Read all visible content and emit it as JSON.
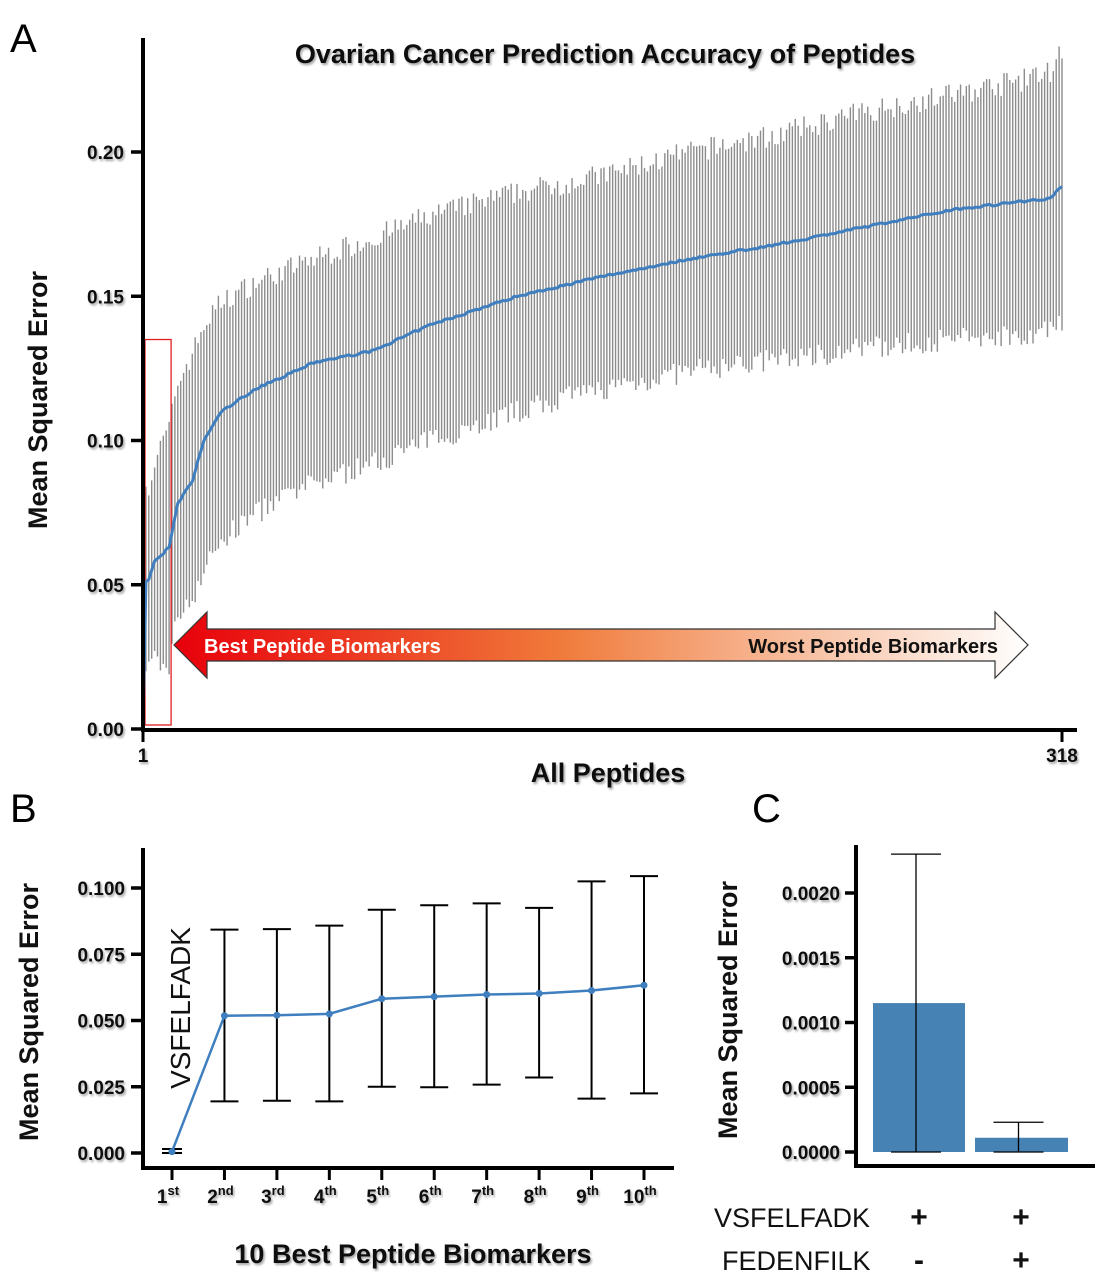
{
  "figure": {
    "panel_labels": [
      "A",
      "B",
      "C"
    ]
  },
  "chart_data": [
    {
      "panel": "A",
      "type": "line",
      "title": "Ovarian Cancer Prediction Accuracy of Peptides",
      "xlabel": "All Peptides",
      "ylabel": "Mean Squared Error",
      "xlim": [
        1,
        318
      ],
      "ylim": [
        0,
        0.24
      ],
      "x_tick_labels": [
        "1",
        "318"
      ],
      "x_ticks": [
        1,
        318
      ],
      "y_ticks": [
        0.0,
        0.05,
        0.1,
        0.15,
        0.2
      ],
      "y_tick_labels": [
        "0.00",
        "0.05",
        "0.10",
        "0.15",
        "0.20"
      ],
      "grid": false,
      "n_points": 318,
      "series": [
        {
          "name": "Mean Squared Error (mean with error bars)",
          "color": "#3f7fbf",
          "error_bar_color": "#8c8c8c",
          "anchor_points": [
            {
              "x": 1,
              "mean": 0.001,
              "low": 0.0,
              "high": 0.002
            },
            {
              "x": 2,
              "mean": 0.051,
              "low": 0.02,
              "high": 0.084
            },
            {
              "x": 3,
              "mean": 0.052,
              "low": 0.02,
              "high": 0.085
            },
            {
              "x": 5,
              "mean": 0.058,
              "low": 0.025,
              "high": 0.092
            },
            {
              "x": 8,
              "mean": 0.061,
              "low": 0.021,
              "high": 0.1
            },
            {
              "x": 10,
              "mean": 0.063,
              "low": 0.022,
              "high": 0.104
            },
            {
              "x": 13,
              "mean": 0.078,
              "low": 0.04,
              "high": 0.12
            },
            {
              "x": 18,
              "mean": 0.086,
              "low": 0.045,
              "high": 0.13
            },
            {
              "x": 22,
              "mean": 0.1,
              "low": 0.055,
              "high": 0.14
            },
            {
              "x": 28,
              "mean": 0.11,
              "low": 0.065,
              "high": 0.148
            },
            {
              "x": 40,
              "mean": 0.118,
              "low": 0.075,
              "high": 0.155
            },
            {
              "x": 60,
              "mean": 0.127,
              "low": 0.085,
              "high": 0.163
            },
            {
              "x": 80,
              "mean": 0.131,
              "low": 0.092,
              "high": 0.17
            },
            {
              "x": 100,
              "mean": 0.14,
              "low": 0.1,
              "high": 0.178
            },
            {
              "x": 130,
              "mean": 0.15,
              "low": 0.11,
              "high": 0.186
            },
            {
              "x": 160,
              "mean": 0.157,
              "low": 0.118,
              "high": 0.192
            },
            {
              "x": 190,
              "mean": 0.163,
              "low": 0.124,
              "high": 0.2
            },
            {
              "x": 220,
              "mean": 0.168,
              "low": 0.128,
              "high": 0.206
            },
            {
              "x": 250,
              "mean": 0.174,
              "low": 0.132,
              "high": 0.214
            },
            {
              "x": 280,
              "mean": 0.18,
              "low": 0.135,
              "high": 0.22
            },
            {
              "x": 305,
              "mean": 0.183,
              "low": 0.137,
              "high": 0.225
            },
            {
              "x": 314,
              "mean": 0.184,
              "low": 0.138,
              "high": 0.228
            },
            {
              "x": 318,
              "mean": 0.188,
              "low": 0.14,
              "high": 0.236
            }
          ]
        }
      ],
      "annotations": {
        "highlight_box": {
          "label": "top 10 peptides",
          "x_range": [
            1,
            10
          ],
          "y_range": [
            0,
            0.135
          ],
          "color": "#e02020"
        },
        "arrow": {
          "left_label": "Best Peptide Biomarkers",
          "right_label": "Worst Peptide Biomarkers",
          "gradient_start": "#e8000b",
          "gradient_mid": "#f07a3a",
          "gradient_end": "#ffffff"
        }
      }
    },
    {
      "panel": "B",
      "type": "line",
      "title": "",
      "xlabel": "10 Best Peptide Biomarkers",
      "ylabel": "Mean Squared Error",
      "ylim": [
        0,
        0.115
      ],
      "y_ticks": [
        0.0,
        0.025,
        0.05,
        0.075,
        0.1
      ],
      "y_tick_labels": [
        "0.000",
        "0.025",
        "0.050",
        "0.075",
        "0.100"
      ],
      "grid": false,
      "categories": [
        {
          "num": "1",
          "sup": "st"
        },
        {
          "num": "2",
          "sup": "nd"
        },
        {
          "num": "3",
          "sup": "rd"
        },
        {
          "num": "4",
          "sup": "th"
        },
        {
          "num": "5",
          "sup": "th"
        },
        {
          "num": "6",
          "sup": "th"
        },
        {
          "num": "7",
          "sup": "th"
        },
        {
          "num": "8",
          "sup": "th"
        },
        {
          "num": "9",
          "sup": "th"
        },
        {
          "num": "10",
          "sup": "th"
        }
      ],
      "series": [
        {
          "name": "Mean Squared Error",
          "color": "#3f7fbf",
          "values": [
            0.0005,
            0.0518,
            0.052,
            0.0525,
            0.0582,
            0.059,
            0.0598,
            0.0602,
            0.0613,
            0.0633
          ],
          "error_low": [
            0.0,
            0.0195,
            0.0197,
            0.0195,
            0.025,
            0.0248,
            0.0258,
            0.0285,
            0.0205,
            0.0225
          ],
          "error_high": [
            0.0015,
            0.0843,
            0.0845,
            0.0858,
            0.0918,
            0.0935,
            0.0942,
            0.0925,
            0.1025,
            0.1045
          ]
        }
      ],
      "annotations": {
        "vertical_label": "VSFELFADK"
      }
    },
    {
      "panel": "C",
      "type": "bar",
      "title": "",
      "xlabel": "",
      "ylabel": "Mean Squared Error",
      "ylim": [
        0,
        0.0024
      ],
      "y_ticks": [
        0.0,
        0.0005,
        0.001,
        0.0015,
        0.002
      ],
      "y_tick_labels": [
        "0.0000",
        "0.0005",
        "0.0010",
        "0.0015",
        "0.0020"
      ],
      "grid": false,
      "categories": [
        "VSFELFADK + / FEDENFILK -",
        "VSFELFADK + / FEDENFILK +"
      ],
      "series": [
        {
          "name": "Mean Squared Error",
          "color": "#4682b4",
          "values": [
            0.00115,
            0.00011
          ],
          "error_low": [
            0.0,
            0.0
          ],
          "error_high": [
            0.0023,
            0.00023
          ]
        }
      ],
      "condition_table": {
        "rows": [
          {
            "label": "VSFELFADK",
            "values": [
              "+",
              "+"
            ]
          },
          {
            "label": "FEDENFILK",
            "values": [
              "-",
              "+"
            ]
          }
        ]
      }
    }
  ]
}
